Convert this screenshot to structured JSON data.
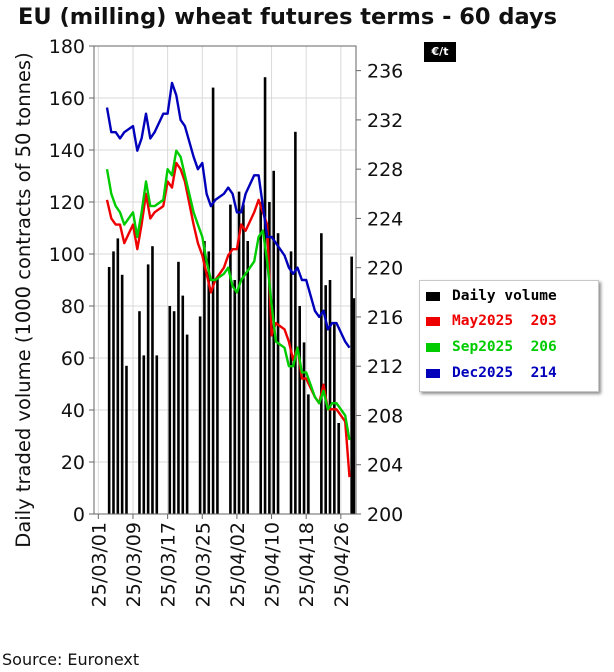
{
  "title": "EU (milling) wheat futures terms - 60 days",
  "unit_badge": "€/t",
  "source": "Source: Euronext",
  "chart_data": {
    "type": "bar+line",
    "y_left_label": "Daily traded volume (1000 contracts of 50 tonnes)",
    "y_left_range": [
      0,
      180
    ],
    "y_left_ticks": [
      0,
      20,
      40,
      60,
      80,
      100,
      120,
      140,
      160,
      180
    ],
    "y_right_range": [
      200,
      238
    ],
    "y_right_ticks": [
      200,
      204,
      208,
      212,
      216,
      220,
      224,
      228,
      232,
      236
    ],
    "x_ticks": [
      {
        "label": "25/03/01",
        "day": 0
      },
      {
        "label": "25/03/09",
        "day": 8
      },
      {
        "label": "25/03/17",
        "day": 16
      },
      {
        "label": "25/03/25",
        "day": 24
      },
      {
        "label": "25/04/02",
        "day": 32
      },
      {
        "label": "25/04/10",
        "day": 40
      },
      {
        "label": "25/04/18",
        "day": 48
      },
      {
        "label": "25/04/26",
        "day": 56
      }
    ],
    "x_range": [
      -1,
      59.5
    ],
    "grid": true,
    "legend": [
      {
        "label": "Daily volume",
        "value": "",
        "color": "#000000"
      },
      {
        "label": "May2025",
        "value": "203",
        "color": "#ee0000"
      },
      {
        "label": "Sep2025",
        "value": "206",
        "color": "#00cc00"
      },
      {
        "label": "Dec2025",
        "value": "214",
        "color": "#0000bb"
      }
    ],
    "volume": {
      "name": "Daily volume",
      "x": [
        2.5,
        3.5,
        4.5,
        5.5,
        6.5,
        9.5,
        10.5,
        11.5,
        12.5,
        13.5,
        16.5,
        17.5,
        18.5,
        19.5,
        20.5,
        23.5,
        24.5,
        25.5,
        26.5,
        27.5,
        30.5,
        31.5,
        32.5,
        33.5,
        34.5,
        37.5,
        38.5,
        39.5,
        40.5,
        41.5,
        44.5,
        45.5,
        46.5,
        47.5,
        48.5,
        51.5,
        52.5,
        53.5,
        54.5,
        55.5,
        58.5,
        59
      ],
      "values": [
        95,
        101,
        106,
        92,
        57,
        78,
        61,
        96,
        103,
        61,
        80,
        78,
        97,
        84,
        69,
        76,
        105,
        101,
        164,
        91,
        119,
        90,
        124,
        119,
        105,
        120,
        168,
        120,
        132,
        108,
        101,
        147,
        80,
        66,
        46,
        108,
        88,
        90,
        73,
        35,
        99,
        83
      ]
    },
    "series": [
      {
        "name": "May2025",
        "color": "#ee0000",
        "x": [
          2,
          3,
          4,
          5,
          6,
          8,
          9,
          10,
          11,
          12,
          13,
          15,
          16,
          17,
          18,
          19,
          20,
          22,
          23,
          24,
          25,
          26,
          27,
          29,
          30,
          31,
          32,
          33,
          34,
          36,
          37,
          38,
          39,
          40,
          41,
          43,
          44,
          45,
          46,
          47,
          48,
          50,
          51,
          52,
          53,
          54,
          55,
          57,
          58
        ],
        "y": [
          225.5,
          224,
          223.5,
          223.5,
          222,
          223.5,
          221.5,
          223.5,
          226,
          224,
          224.5,
          225,
          227,
          226.5,
          228.5,
          228,
          227,
          223.5,
          222,
          221,
          219.5,
          218,
          219,
          220,
          221,
          221.5,
          221.5,
          223.5,
          223,
          224.5,
          225.5,
          224.5,
          223.5,
          214.5,
          215.5,
          215,
          214,
          212.5,
          213.5,
          211,
          211,
          209.5,
          209,
          210.5,
          208.5,
          208.5,
          208.5,
          207.5,
          203
        ]
      },
      {
        "name": "Sep2025",
        "color": "#00cc00",
        "x": [
          2,
          3,
          4,
          5,
          6,
          8,
          9,
          10,
          11,
          12,
          13,
          15,
          16,
          17,
          18,
          19,
          20,
          22,
          23,
          24,
          25,
          26,
          27,
          29,
          30,
          31,
          32,
          33,
          34,
          36,
          37,
          38,
          39,
          40,
          41,
          43,
          44,
          45,
          46,
          47,
          48,
          50,
          51,
          52,
          53,
          54,
          55,
          57,
          58
        ],
        "y": [
          228,
          226,
          225,
          224.5,
          223.5,
          224.5,
          222.5,
          224.5,
          227,
          225,
          225,
          225.5,
          228,
          227.5,
          229.5,
          229,
          227.5,
          224.5,
          223.5,
          222.5,
          220.5,
          219,
          219,
          219.5,
          220,
          218.5,
          218,
          219,
          219.5,
          220.5,
          222.5,
          223,
          220.5,
          217,
          214,
          213.5,
          212,
          212,
          213.5,
          211.5,
          211.5,
          209.5,
          209,
          210,
          208.5,
          209,
          209,
          208,
          206
        ]
      },
      {
        "name": "Dec2025",
        "color": "#0000bb",
        "x": [
          2,
          3,
          4,
          5,
          6,
          8,
          9,
          10,
          11,
          12,
          13,
          15,
          16,
          17,
          18,
          19,
          20,
          22,
          23,
          24,
          25,
          26,
          27,
          29,
          30,
          31,
          32,
          33,
          34,
          36,
          37,
          38,
          39,
          40,
          41,
          43,
          44,
          45,
          46,
          47,
          48,
          50,
          51,
          52,
          53,
          54,
          55,
          57,
          58
        ],
        "y": [
          233,
          231,
          231,
          230.5,
          231,
          231.5,
          229.5,
          230.5,
          232.5,
          230.5,
          231,
          232.5,
          232.5,
          235,
          234,
          232,
          231.5,
          229,
          228,
          228.5,
          226,
          225,
          225.5,
          226,
          226.5,
          226,
          224.5,
          224.5,
          226,
          227.5,
          227.5,
          225,
          222.5,
          222.5,
          222,
          221,
          220,
          219.5,
          220,
          219,
          219,
          216.5,
          216,
          216.5,
          215,
          215.5,
          215.5,
          214,
          213.5
        ]
      }
    ]
  }
}
